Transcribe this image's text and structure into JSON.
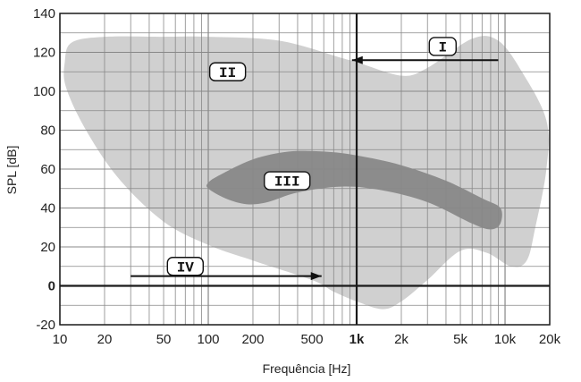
{
  "chart_data": {
    "type": "area",
    "xlabel": "Frequência [Hz]",
    "ylabel": "SPL [dB]",
    "xscale": "log",
    "xlim": [
      10,
      20000
    ],
    "ylim": [
      -20,
      140
    ],
    "grid": true,
    "x_ticks": [
      {
        "value": 10,
        "label": "10"
      },
      {
        "value": 20,
        "label": "20"
      },
      {
        "value": 50,
        "label": "50"
      },
      {
        "value": 100,
        "label": "100"
      },
      {
        "value": 200,
        "label": "200"
      },
      {
        "value": 500,
        "label": "500"
      },
      {
        "value": 1000,
        "label": "1k",
        "bold": true
      },
      {
        "value": 2000,
        "label": "2k"
      },
      {
        "value": 5000,
        "label": "5k"
      },
      {
        "value": 10000,
        "label": "10k"
      },
      {
        "value": 20000,
        "label": "20k"
      }
    ],
    "y_ticks": [
      {
        "value": 140,
        "label": "140"
      },
      {
        "value": 120,
        "label": "120"
      },
      {
        "value": 100,
        "label": "100"
      },
      {
        "value": 80,
        "label": "80"
      },
      {
        "value": 60,
        "label": "60"
      },
      {
        "value": 40,
        "label": "40"
      },
      {
        "value": 20,
        "label": "20"
      },
      {
        "value": 0,
        "label": "0",
        "bold": true
      },
      {
        "value": -20,
        "label": "-20"
      }
    ],
    "colors": {
      "region_outer": "#d0d0d0",
      "region_inner": "#8c8c8c",
      "grid": "#888888",
      "axis": "#1a1a1a"
    },
    "regions": [
      {
        "id": "II-area",
        "color_key": "region_outer",
        "points": [
          [
            10.8,
            115
          ],
          [
            12,
            125
          ],
          [
            20,
            128
          ],
          [
            50,
            128
          ],
          [
            100,
            128
          ],
          [
            300,
            126
          ],
          [
            800,
            117
          ],
          [
            1000,
            115
          ],
          [
            2000,
            108
          ],
          [
            3000,
            112
          ],
          [
            6000,
            127
          ],
          [
            9000,
            126
          ],
          [
            13000,
            110
          ],
          [
            19000,
            85
          ],
          [
            19000,
            60
          ],
          [
            16000,
            30
          ],
          [
            14000,
            13
          ],
          [
            11000,
            10
          ],
          [
            7500,
            17
          ],
          [
            5000,
            18
          ],
          [
            3000,
            3
          ],
          [
            2000,
            -8
          ],
          [
            1500,
            -12
          ],
          [
            1000,
            -8
          ],
          [
            700,
            -3
          ],
          [
            500,
            3
          ],
          [
            200,
            13
          ],
          [
            100,
            21
          ],
          [
            50,
            33
          ],
          [
            25,
            55
          ],
          [
            15,
            80
          ],
          [
            11,
            102
          ]
        ]
      },
      {
        "id": "III-area",
        "color_key": "region_inner",
        "points": [
          [
            100,
            53
          ],
          [
            120,
            57
          ],
          [
            200,
            65
          ],
          [
            350,
            69
          ],
          [
            600,
            69
          ],
          [
            1000,
            67
          ],
          [
            2000,
            62
          ],
          [
            4000,
            54
          ],
          [
            7000,
            45
          ],
          [
            9300,
            40
          ],
          [
            9300,
            32
          ],
          [
            8000,
            29
          ],
          [
            6000,
            32
          ],
          [
            3000,
            43
          ],
          [
            1500,
            49
          ],
          [
            800,
            51
          ],
          [
            400,
            48
          ],
          [
            250,
            43
          ],
          [
            180,
            42
          ],
          [
            130,
            45
          ],
          [
            100,
            50
          ]
        ]
      }
    ],
    "annotations": [
      {
        "id": "I",
        "text": "I",
        "x": 3800,
        "y": 123,
        "arrow_from": [
          9000,
          116
        ],
        "arrow_to": [
          930,
          116
        ]
      },
      {
        "id": "II",
        "text": "II",
        "x": 135,
        "y": 110
      },
      {
        "id": "III",
        "text": "III",
        "x": 340,
        "y": 54
      },
      {
        "id": "IV",
        "text": "IV",
        "x": 70,
        "y": 10,
        "arrow_from": [
          30,
          5
        ],
        "arrow_to": [
          580,
          5
        ]
      }
    ]
  }
}
